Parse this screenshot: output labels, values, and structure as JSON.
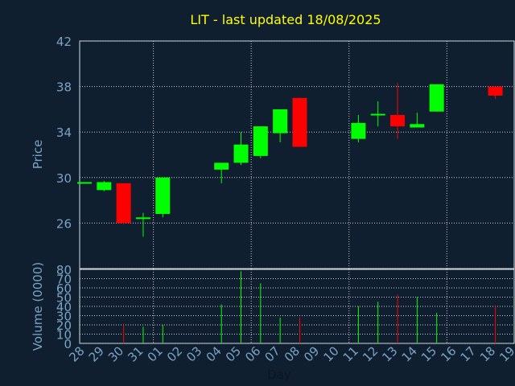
{
  "colors": {
    "background": "#0f1f30",
    "plot_background": "#0f1f30",
    "frame": "#d9dde0",
    "grid": "#c8ccd0",
    "title": "#ffff00",
    "axis_text": "#7aa3c4",
    "up": "#00ff00",
    "down": "#ff0000"
  },
  "chart_data": [
    {
      "type": "candlestick",
      "title": "LIT - last updated 18/08/2025",
      "ylabel": "Price",
      "ylim": [
        22,
        42
      ],
      "yticks": [
        26,
        30,
        34,
        38,
        42
      ],
      "grid": true,
      "x_categories": [
        "28",
        "29",
        "30",
        "31",
        "01",
        "02",
        "03",
        "04",
        "05",
        "06",
        "07",
        "08",
        "09",
        "10",
        "11",
        "12",
        "13",
        "14",
        "15",
        "16",
        "17",
        "18",
        "19"
      ],
      "candles": [
        {
          "day": "28",
          "open": 29.6,
          "high": 29.6,
          "low": 29.6,
          "close": 29.6
        },
        {
          "day": "29",
          "open": 28.9,
          "high": 29.7,
          "low": 28.8,
          "close": 29.6
        },
        {
          "day": "30",
          "open": 29.5,
          "high": 29.5,
          "low": 25.9,
          "close": 26.0
        },
        {
          "day": "31",
          "open": 26.5,
          "high": 26.9,
          "low": 24.8,
          "close": 26.5
        },
        {
          "day": "01",
          "open": 26.8,
          "high": 30.0,
          "low": 26.5,
          "close": 30.0
        },
        {
          "day": "04",
          "open": 30.7,
          "high": 31.3,
          "low": 29.5,
          "close": 31.3
        },
        {
          "day": "05",
          "open": 31.3,
          "high": 34.0,
          "low": 31.1,
          "close": 32.9
        },
        {
          "day": "06",
          "open": 31.9,
          "high": 34.5,
          "low": 31.7,
          "close": 34.5
        },
        {
          "day": "07",
          "open": 33.9,
          "high": 36.0,
          "low": 33.1,
          "close": 36.0
        },
        {
          "day": "08",
          "open": 37.0,
          "high": 37.0,
          "low": 32.7,
          "close": 32.7
        },
        {
          "day": "11",
          "open": 33.4,
          "high": 35.5,
          "low": 33.1,
          "close": 34.8
        },
        {
          "day": "12",
          "open": 35.6,
          "high": 36.7,
          "low": 34.5,
          "close": 35.6
        },
        {
          "day": "13",
          "open": 35.5,
          "high": 38.3,
          "low": 33.4,
          "close": 34.5
        },
        {
          "day": "14",
          "open": 34.4,
          "high": 35.7,
          "low": 34.4,
          "close": 34.7
        },
        {
          "day": "15",
          "open": 35.8,
          "high": 38.2,
          "low": 35.8,
          "close": 38.2
        },
        {
          "day": "18",
          "open": 38.0,
          "high": 38.0,
          "low": 36.9,
          "close": 37.2
        }
      ]
    },
    {
      "type": "bar",
      "ylabel": "Volume (0000)",
      "xlabel": "Day",
      "ylim": [
        0,
        80
      ],
      "yticks": [
        0,
        10,
        20,
        30,
        40,
        50,
        60,
        70,
        80
      ],
      "grid": true,
      "categories": [
        "28",
        "29",
        "30",
        "31",
        "01",
        "02",
        "03",
        "04",
        "05",
        "06",
        "07",
        "08",
        "09",
        "10",
        "11",
        "12",
        "13",
        "14",
        "15",
        "16",
        "17",
        "18",
        "19"
      ],
      "values": [
        0,
        0,
        20,
        18,
        20,
        0,
        0,
        42,
        78,
        65,
        28,
        28,
        0,
        0,
        40,
        45,
        53,
        50,
        33,
        0,
        0,
        40,
        0
      ],
      "bar_directions": [
        "up",
        "up",
        "down",
        "up",
        "up",
        "up",
        "up",
        "up",
        "up",
        "up",
        "up",
        "down",
        "up",
        "up",
        "up",
        "up",
        "down",
        "up",
        "up",
        "up",
        "up",
        "down",
        "up"
      ]
    }
  ]
}
